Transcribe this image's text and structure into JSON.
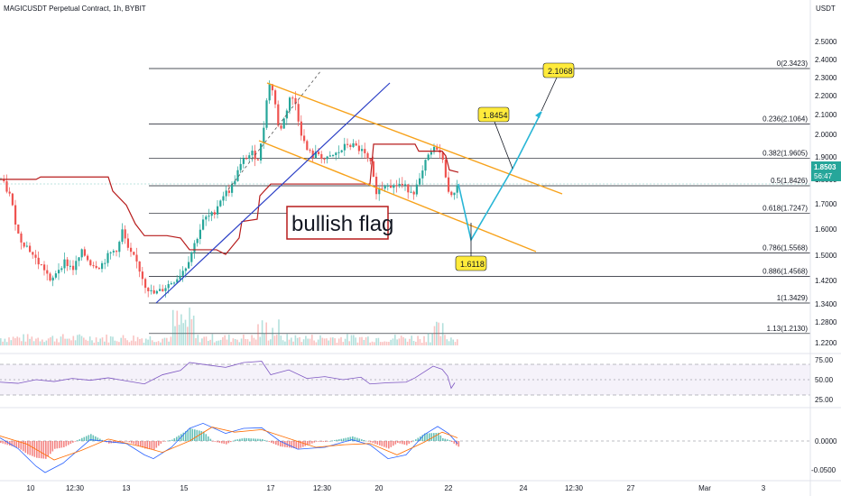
{
  "header": {
    "title": "MAGICUSDT Perpetual Contract, 1h, BYBIT",
    "currency": "USDT"
  },
  "colors": {
    "up": "#26a69a",
    "down": "#ef5350",
    "fib": "#131722",
    "channel": "#f7a21b",
    "trendline": "#2b3fc6",
    "supertrend": "#b71c1c",
    "projection": "#29b6d6",
    "callout": "#ffeb3b",
    "rsi": "#7e57c2",
    "macd": "#2962ff",
    "signal": "#ff6d00",
    "price_tag": "#26a69a"
  },
  "main_axis": {
    "ticks": [
      "2.5000",
      "2.4000",
      "2.3000",
      "2.2000",
      "2.1000",
      "2.0000",
      "1.9000",
      "1.8000",
      "1.7000",
      "1.6000",
      "1.5000",
      "1.4200",
      "1.3400",
      "1.2800",
      "1.2200"
    ],
    "current_price": "1.8503",
    "countdown": "56:47"
  },
  "rsi_axis": {
    "ticks": [
      "75.00",
      "50.00",
      "25.00"
    ]
  },
  "macd_axis": {
    "ticks": [
      "0.0000",
      "-0.0500"
    ]
  },
  "x_axis": {
    "ticks": [
      "10",
      "12:30",
      "13",
      "15",
      "17",
      "12:30",
      "20",
      "22",
      "24",
      "12:30",
      "27",
      "Mar",
      "3"
    ]
  },
  "annotations": {
    "pattern": "bullish flag",
    "target1": "1.8454",
    "target2": "2.1068",
    "low": "1.6118"
  },
  "chart_data": {
    "type": "candlestick",
    "title": "MAGICUSDT Perpetual Contract, 1h, BYBIT",
    "ylabel": "USDT",
    "ylim": [
      1.2,
      2.5
    ],
    "fibonacci_levels": [
      {
        "ratio": "0",
        "price": 2.3423,
        "label": "0(2.3423)"
      },
      {
        "ratio": "0.236",
        "price": 2.1064,
        "label": "0.236(2.1064)"
      },
      {
        "ratio": "0.382",
        "price": 1.9605,
        "label": "0.382(1.9605)"
      },
      {
        "ratio": "0.5",
        "price": 1.8426,
        "label": "0.5(1.8426)"
      },
      {
        "ratio": "0.618",
        "price": 1.7247,
        "label": "0.618(1.7247)"
      },
      {
        "ratio": "0.786",
        "price": 1.5568,
        "label": "0.786(1.5568)"
      },
      {
        "ratio": "0.886",
        "price": 1.4568,
        "label": "0.886(1.4568)"
      },
      {
        "ratio": "1",
        "price": 1.3429,
        "label": "1(1.3429)"
      },
      {
        "ratio": "1.13",
        "price": 1.213,
        "label": "1.13(1.2130)"
      }
    ],
    "price_path": [
      [
        0,
        1.87
      ],
      [
        10,
        1.8
      ],
      [
        20,
        1.62
      ],
      [
        30,
        1.58
      ],
      [
        40,
        1.52
      ],
      [
        50,
        1.48
      ],
      [
        55,
        1.42
      ],
      [
        60,
        1.47
      ],
      [
        70,
        1.52
      ],
      [
        80,
        1.49
      ],
      [
        90,
        1.56
      ],
      [
        100,
        1.51
      ],
      [
        110,
        1.5
      ],
      [
        120,
        1.55
      ],
      [
        130,
        1.58
      ],
      [
        135,
        1.66
      ],
      [
        140,
        1.57
      ],
      [
        150,
        1.52
      ],
      [
        160,
        1.42
      ],
      [
        168,
        1.38
      ],
      [
        175,
        1.39
      ],
      [
        185,
        1.42
      ],
      [
        195,
        1.45
      ],
      [
        205,
        1.5
      ],
      [
        215,
        1.6
      ],
      [
        225,
        1.7
      ],
      [
        235,
        1.72
      ],
      [
        245,
        1.8
      ],
      [
        255,
        1.83
      ],
      [
        262,
        1.9
      ],
      [
        270,
        1.96
      ],
      [
        278,
        1.98
      ],
      [
        285,
        1.96
      ],
      [
        290,
        2.05
      ],
      [
        296,
        2.28
      ],
      [
        302,
        2.25
      ],
      [
        308,
        2.07
      ],
      [
        314,
        2.13
      ],
      [
        320,
        2.22
      ],
      [
        326,
        2.2
      ],
      [
        332,
        2.08
      ],
      [
        338,
        2.0
      ],
      [
        345,
        1.97
      ],
      [
        352,
        1.98
      ],
      [
        360,
        1.95
      ],
      [
        368,
        1.97
      ],
      [
        376,
        1.99
      ],
      [
        384,
        2.02
      ],
      [
        392,
        2.01
      ],
      [
        400,
        1.99
      ],
      [
        410,
        1.93
      ],
      [
        415,
        1.82
      ],
      [
        420,
        1.83
      ],
      [
        428,
        1.86
      ],
      [
        435,
        1.84
      ],
      [
        442,
        1.85
      ],
      [
        450,
        1.83
      ],
      [
        458,
        1.82
      ],
      [
        465,
        1.87
      ],
      [
        472,
        1.96
      ],
      [
        478,
        1.99
      ],
      [
        484,
        2.01
      ],
      [
        490,
        1.94
      ],
      [
        496,
        1.83
      ],
      [
        500,
        1.78
      ],
      [
        504,
        1.85
      ],
      [
        508,
        1.85
      ]
    ],
    "supertrend": [
      [
        0,
        1.87
      ],
      [
        40,
        1.87
      ],
      [
        45,
        1.88
      ],
      [
        120,
        1.88
      ],
      [
        125,
        1.82
      ],
      [
        140,
        1.76
      ],
      [
        150,
        1.68
      ],
      [
        160,
        1.63
      ],
      [
        185,
        1.63
      ],
      [
        200,
        1.62
      ],
      [
        210,
        1.57
      ],
      [
        240,
        1.57
      ],
      [
        250,
        1.55
      ],
      [
        265,
        1.62
      ],
      [
        268,
        1.69
      ],
      [
        285,
        1.7
      ],
      [
        288,
        1.8
      ],
      [
        300,
        1.85
      ],
      [
        410,
        1.85
      ],
      [
        414,
        2.02
      ],
      [
        460,
        2.02
      ],
      [
        464,
        1.99
      ],
      [
        490,
        1.99
      ],
      [
        494,
        1.97
      ],
      [
        498,
        1.91
      ],
      [
        508,
        1.9
      ]
    ],
    "projection": [
      [
        508,
        1.85
      ],
      [
        522,
        1.6118
      ],
      [
        568,
        1.8454
      ],
      [
        600,
        2.1068
      ]
    ],
    "rsi_range": [
      0,
      100
    ],
    "rsi": [
      [
        0,
        46
      ],
      [
        20,
        44
      ],
      [
        40,
        50
      ],
      [
        60,
        47
      ],
      [
        80,
        52
      ],
      [
        100,
        49
      ],
      [
        120,
        53
      ],
      [
        140,
        48
      ],
      [
        160,
        43
      ],
      [
        180,
        58
      ],
      [
        200,
        65
      ],
      [
        210,
        78
      ],
      [
        230,
        74
      ],
      [
        250,
        70
      ],
      [
        270,
        78
      ],
      [
        290,
        80
      ],
      [
        300,
        58
      ],
      [
        320,
        66
      ],
      [
        340,
        52
      ],
      [
        360,
        55
      ],
      [
        380,
        50
      ],
      [
        400,
        54
      ],
      [
        410,
        43
      ],
      [
        430,
        45
      ],
      [
        450,
        46
      ],
      [
        460,
        53
      ],
      [
        480,
        72
      ],
      [
        490,
        67
      ],
      [
        496,
        56
      ],
      [
        500,
        36
      ],
      [
        504,
        45
      ]
    ],
    "macd_range": [
      -0.06,
      0.03
    ],
    "macd": [
      [
        0,
        0.005
      ],
      [
        20,
        -0.012
      ],
      [
        40,
        -0.04
      ],
      [
        50,
        -0.05
      ],
      [
        70,
        -0.035
      ],
      [
        100,
        0.002
      ],
      [
        140,
        -0.004
      ],
      [
        160,
        -0.022
      ],
      [
        170,
        -0.028
      ],
      [
        190,
        -0.01
      ],
      [
        210,
        0.02
      ],
      [
        225,
        0.028
      ],
      [
        250,
        0.012
      ],
      [
        270,
        0.02
      ],
      [
        290,
        0.021
      ],
      [
        310,
        0.0
      ],
      [
        330,
        -0.013
      ],
      [
        360,
        -0.01
      ],
      [
        390,
        0.002
      ],
      [
        410,
        -0.006
      ],
      [
        430,
        -0.028
      ],
      [
        450,
        -0.022
      ],
      [
        470,
        0.01
      ],
      [
        485,
        0.023
      ],
      [
        497,
        0.012
      ],
      [
        507,
        -0.004
      ]
    ],
    "signal": [
      [
        0,
        0.008
      ],
      [
        30,
        -0.005
      ],
      [
        60,
        -0.03
      ],
      [
        90,
        -0.015
      ],
      [
        120,
        0.003
      ],
      [
        160,
        -0.01
      ],
      [
        180,
        -0.018
      ],
      [
        210,
        0.0
      ],
      [
        235,
        0.022
      ],
      [
        260,
        0.014
      ],
      [
        290,
        0.018
      ],
      [
        320,
        0.004
      ],
      [
        350,
        -0.01
      ],
      [
        380,
        -0.006
      ],
      [
        410,
        -0.004
      ],
      [
        440,
        -0.022
      ],
      [
        470,
        -0.002
      ],
      [
        490,
        0.014
      ],
      [
        507,
        0.005
      ]
    ]
  }
}
